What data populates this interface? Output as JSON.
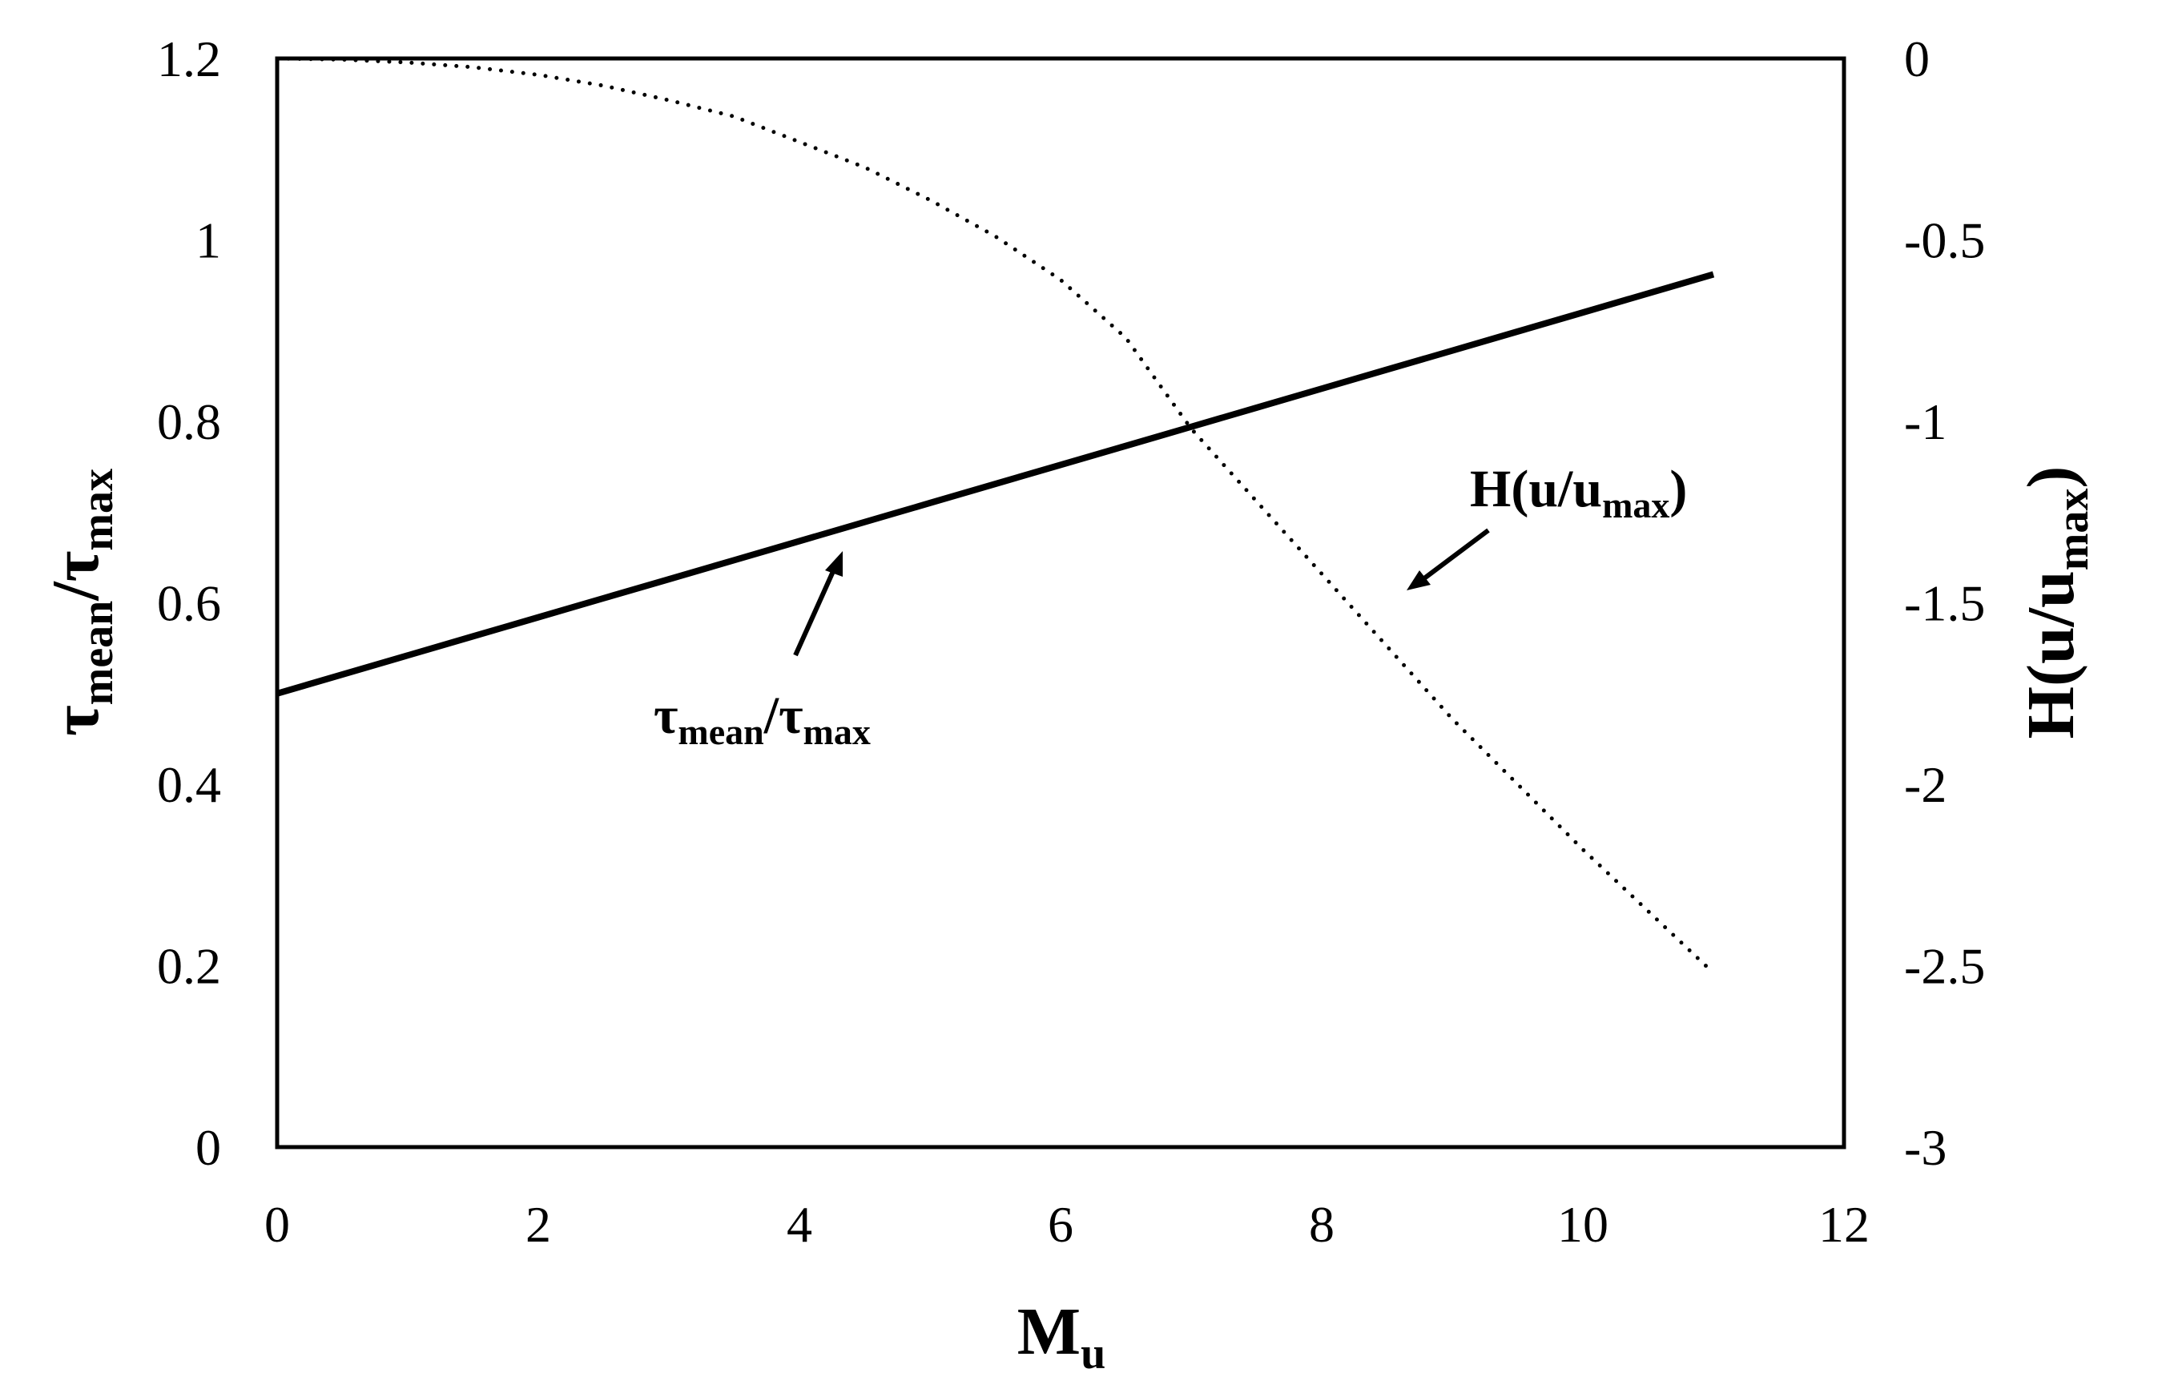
{
  "chart_data": {
    "type": "line",
    "x": [
      0,
      0.5,
      1,
      1.5,
      2,
      2.5,
      3,
      3.5,
      4,
      4.5,
      5,
      5.5,
      6,
      6.5,
      7,
      7.5,
      8,
      8.5,
      9,
      9.5,
      10,
      10.5,
      11
    ],
    "xlabel": {
      "main": "M",
      "sub": "u"
    },
    "xlim": [
      0,
      12
    ],
    "x_ticks": [
      "0",
      "2",
      "4",
      "6",
      "8",
      "10",
      "12"
    ],
    "left_axis": {
      "label": {
        "main": "τ",
        "sub1": "mean",
        "sep": "/τ",
        "sub2": "max"
      },
      "ylim": [
        0,
        1.2
      ],
      "ticks": [
        "0",
        "0.2",
        "0.4",
        "0.6",
        "0.8",
        "1",
        "1.2"
      ]
    },
    "right_axis": {
      "label": {
        "main": "H(u/u",
        "sub": "max",
        "end": ")"
      },
      "ylim": [
        -3,
        0
      ],
      "ticks": [
        "-3",
        "-2.5",
        "-2",
        "-1.5",
        "-1",
        "-0.5",
        "0"
      ]
    },
    "series": [
      {
        "axis": "left",
        "style": "solid",
        "values": [
          0.5,
          0.521,
          0.542,
          0.563,
          0.584,
          0.605,
          0.626,
          0.647,
          0.668,
          0.689,
          0.71,
          0.731,
          0.752,
          0.773,
          0.794,
          0.815,
          0.836,
          0.857,
          0.878,
          0.899,
          0.92,
          0.941,
          0.962
        ]
      },
      {
        "axis": "right",
        "style": "dotted",
        "values": [
          0,
          -0.003,
          -0.011,
          -0.024,
          -0.045,
          -0.075,
          -0.115,
          -0.16,
          -0.23,
          -0.3,
          -0.39,
          -0.49,
          -0.61,
          -0.77,
          -1.02,
          -1.22,
          -1.42,
          -1.62,
          -1.82,
          -2.0,
          -2.18,
          -2.35,
          -2.52
        ]
      }
    ],
    "annotations": {
      "tau": {
        "main": "τ",
        "sub1": "mean",
        "sep": "/τ",
        "sub2": "max"
      },
      "h": {
        "main": "H(u/u",
        "sub": "max",
        "end": ")"
      }
    },
    "grid": false,
    "legend": "none"
  }
}
